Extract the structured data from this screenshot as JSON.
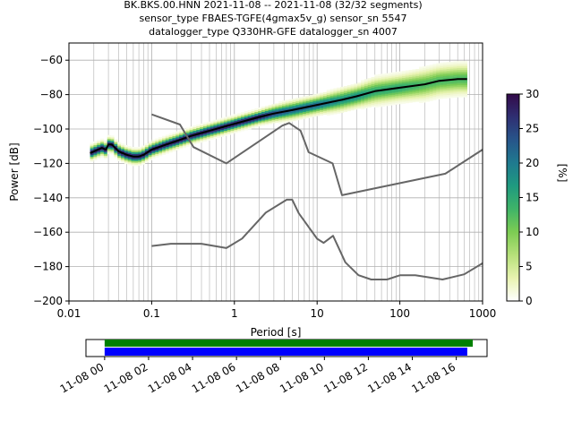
{
  "title_lines": [
    "BK.BKS.00.HNN   2021-11-08 -- 2021-11-08  (32/32 segments)",
    "sensor_type FBAES-TGFE(4gmax5v_g) sensor_sn 5547",
    "datalogger_type Q330HR-GFE datalogger_sn 4007"
  ],
  "colors": {
    "axes": "#000000",
    "grid": "#b0b0b0",
    "noise_model": "#666666",
    "mode_line": "#000000",
    "data_available": "#008000",
    "gaps_bar": "#0000ff"
  },
  "chart_data": [
    {
      "type": "heatmap",
      "title": "",
      "xlabel": "Period [s]",
      "ylabel": "Power [dB]",
      "x_scale": "log",
      "xlim": [
        0.01,
        1000
      ],
      "ylim": [
        -200,
        -50
      ],
      "grid": true,
      "x_ticks": [
        {
          "value": 0.01,
          "label": "0.01"
        },
        {
          "value": 0.1,
          "label": "0.1"
        },
        {
          "value": 1,
          "label": "1"
        },
        {
          "value": 10,
          "label": "10"
        },
        {
          "value": 100,
          "label": "100"
        },
        {
          "value": 1000,
          "label": "1000"
        }
      ],
      "y_ticks": [
        {
          "value": -60,
          "label": "−60"
        },
        {
          "value": -80,
          "label": "−80"
        },
        {
          "value": -100,
          "label": "−100"
        },
        {
          "value": -120,
          "label": "−120"
        },
        {
          "value": -140,
          "label": "−140"
        },
        {
          "value": -160,
          "label": "−160"
        },
        {
          "value": -180,
          "label": "−180"
        },
        {
          "value": -200,
          "label": "−200"
        }
      ],
      "colorbar": {
        "label": "[%]",
        "range": [
          0,
          30
        ],
        "ticks": [
          {
            "value": 0,
            "label": "0"
          },
          {
            "value": 5,
            "label": "5"
          },
          {
            "value": 10,
            "label": "10"
          },
          {
            "value": 15,
            "label": "15"
          },
          {
            "value": 20,
            "label": "20"
          },
          {
            "value": 25,
            "label": "25"
          },
          {
            "value": 30,
            "label": "30"
          }
        ],
        "colormap": [
          "#ffffff",
          "#e8f3b0",
          "#b6e07a",
          "#7dcc53",
          "#3fb468",
          "#1f9a80",
          "#1f7a8f",
          "#27558a",
          "#2f2f72",
          "#330a4a"
        ]
      },
      "series": [
        {
          "kind": "mode",
          "x": [
            0.018,
            0.025,
            0.028,
            0.03,
            0.033,
            0.04,
            0.05,
            0.06,
            0.07,
            0.08,
            0.1,
            0.15,
            0.2,
            0.3,
            0.5,
            1,
            2,
            3,
            5,
            10,
            20,
            30,
            50,
            100,
            200,
            300,
            500,
            650
          ],
          "y": [
            -114,
            -111,
            -112,
            -109,
            -109,
            -113,
            -115,
            -116,
            -116,
            -115,
            -112,
            -109,
            -107,
            -104,
            -101,
            -97,
            -93,
            -91,
            -89,
            -86,
            -83,
            -81,
            -78,
            -76,
            -74,
            -72,
            -71,
            -71
          ]
        },
        {
          "kind": "nhnm",
          "x": [
            0.1,
            0.22,
            0.32,
            0.8,
            3.8,
            4.6,
            6.3,
            7.9,
            15.4,
            20,
            354.8,
            1000
          ],
          "y": [
            -91.5,
            -97.4,
            -110.5,
            -120,
            -98,
            -96.5,
            -101,
            -113.5,
            -120,
            -138.5,
            -126,
            -112
          ]
        },
        {
          "kind": "nlnm",
          "x": [
            0.1,
            0.17,
            0.4,
            0.8,
            1.24,
            2.4,
            4.3,
            5,
            6,
            10,
            12,
            15.6,
            21.9,
            31.6,
            45,
            70,
            101,
            154,
            328,
            600,
            1000
          ],
          "y": [
            -168,
            -166.7,
            -166.7,
            -169.2,
            -163.7,
            -148.6,
            -141.1,
            -141.1,
            -149,
            -163.8,
            -166.2,
            -162.1,
            -177.5,
            -185,
            -187.5,
            -187.5,
            -185,
            -185,
            -187.5,
            -184.5,
            -178
          ]
        }
      ],
      "density_band": {
        "center_x": [
          0.018,
          0.025,
          0.028,
          0.03,
          0.033,
          0.04,
          0.05,
          0.06,
          0.07,
          0.08,
          0.1,
          0.15,
          0.2,
          0.3,
          0.5,
          1,
          2,
          3,
          5,
          10,
          20,
          30,
          50,
          100,
          200,
          300,
          500,
          650
        ],
        "center_y": [
          -114,
          -111,
          -112,
          -109,
          -109,
          -113,
          -115,
          -116,
          -116,
          -115,
          -112,
          -109,
          -107,
          -104,
          -101,
          -97,
          -93,
          -91,
          -89,
          -86,
          -83,
          -81,
          -78,
          -76,
          -74,
          -72,
          -71,
          -71
        ],
        "spread_db": [
          3,
          3,
          3,
          3,
          3,
          3,
          3,
          3,
          3,
          3,
          3,
          3,
          3,
          3,
          3,
          3,
          3,
          3.5,
          4,
          4,
          5,
          5,
          6,
          6,
          7,
          7,
          7,
          7
        ]
      }
    },
    {
      "type": "timeline",
      "x_ticks": [
        {
          "value": 0,
          "label": "11-08 00"
        },
        {
          "value": 2,
          "label": "11-08 02"
        },
        {
          "value": 4,
          "label": "11-08 04"
        },
        {
          "value": 6,
          "label": "11-08 06"
        },
        {
          "value": 8,
          "label": "11-08 08"
        },
        {
          "value": 10,
          "label": "11-08 10"
        },
        {
          "value": 12,
          "label": "11-08 12"
        },
        {
          "value": 14,
          "label": "11-08 14"
        },
        {
          "value": 16,
          "label": "11-08 16"
        }
      ],
      "xlim_hours": [
        -0.85,
        17.4
      ],
      "data_available_hours": [
        0,
        16.75
      ],
      "psd_coverage_hours": [
        0,
        16.5
      ]
    }
  ]
}
